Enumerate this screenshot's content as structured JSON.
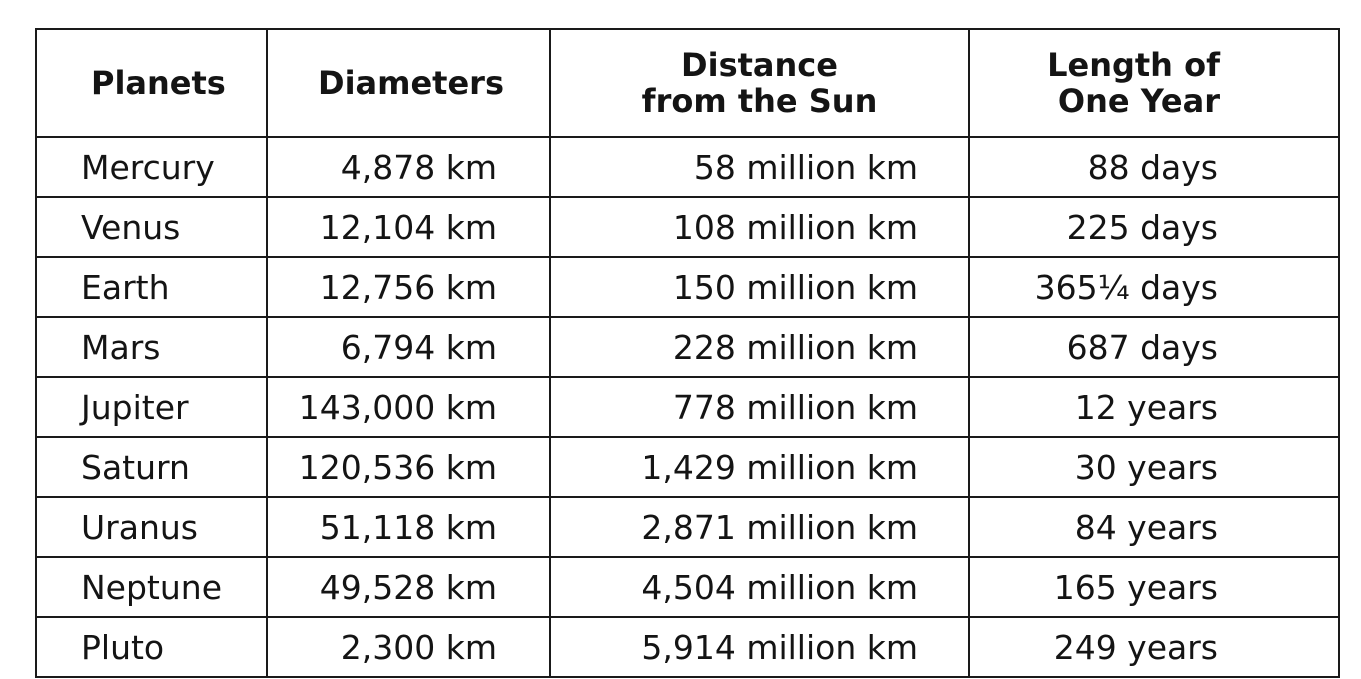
{
  "table": {
    "headers": {
      "planets": "Planets",
      "diameters": "Diameters",
      "distance_line1": "Distance",
      "distance_line2": "from the Sun",
      "year_line1": "Length of",
      "year_line2": "One Year"
    },
    "rows": [
      {
        "planet": "Mercury",
        "diameter": "4,878 km",
        "distance": "58 million km",
        "year": "88 days"
      },
      {
        "planet": "Venus",
        "diameter": "12,104 km",
        "distance": "108 million km",
        "year": "225 days"
      },
      {
        "planet": "Earth",
        "diameter": "12,756 km",
        "distance": "150 million km",
        "year": "365¼ days"
      },
      {
        "planet": "Mars",
        "diameter": "6,794 km",
        "distance": "228 million km",
        "year": "687 days"
      },
      {
        "planet": "Jupiter",
        "diameter": "143,000 km",
        "distance": "778 million km",
        "year": "12 years"
      },
      {
        "planet": "Saturn",
        "diameter": "120,536 km",
        "distance": "1,429 million km",
        "year": "30 years"
      },
      {
        "planet": "Uranus",
        "diameter": "51,118 km",
        "distance": "2,871 million km",
        "year": "84 years"
      },
      {
        "planet": "Neptune",
        "diameter": "49,528 km",
        "distance": "4,504 million km",
        "year": "165 years"
      },
      {
        "planet": "Pluto",
        "diameter": "2,300 km",
        "distance": "5,914 million km",
        "year": "249 years"
      }
    ]
  }
}
